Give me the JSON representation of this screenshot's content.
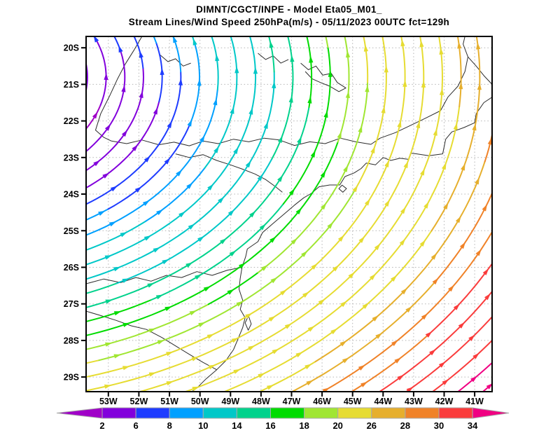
{
  "title": {
    "line1": "DIMNT/CGCT/INPE -   Model Eta05_M01_",
    "line2": "Stream Lines/Wind Speed 250hPa(m/s) -   05/11/2023 00UTC fct=129h"
  },
  "axes": {
    "lat_labels": [
      "20S",
      "21S",
      "22S",
      "23S",
      "24S",
      "25S",
      "26S",
      "27S",
      "28S",
      "29S"
    ],
    "lat_values": [
      -20,
      -21,
      -22,
      -23,
      -24,
      -25,
      -26,
      -27,
      -28,
      -29
    ],
    "lon_labels": [
      "53W",
      "52W",
      "51W",
      "50W",
      "49W",
      "48W",
      "47W",
      "46W",
      "45W",
      "44W",
      "43W",
      "42W",
      "41W"
    ],
    "lon_values": [
      -53,
      -52,
      -51,
      -50,
      -49,
      -48,
      -47,
      -46,
      -45,
      -44,
      -43,
      -42,
      -41
    ]
  },
  "colorbar": {
    "labels": [
      "2",
      "6",
      "8",
      "10",
      "14",
      "16",
      "18",
      "20",
      "26",
      "28",
      "30",
      "34"
    ],
    "arrow_low_color": "#A000C8",
    "arrow_high_color": "#F00082"
  },
  "chart_data": {
    "type": "streamline-map",
    "title": "DIMNT/CGCT/INPE - Model Eta05_M01_",
    "subtitle": "Stream Lines/Wind Speed 250hPa(m/s) - 05/11/2023 00UTC fct=129h",
    "variable": "Stream Lines / Wind Speed",
    "level": "250hPa",
    "units": "m/s",
    "model": "Eta05_M01_",
    "institution": "DIMNT/CGCT/INPE",
    "run": "05/11/2023 00UTC",
    "forecast": "fct=129h",
    "lon_range": [
      -53.73,
      -40.43
    ],
    "lat_range": [
      -29.4,
      -19.69
    ],
    "grid": "on, dotted, 1 degree",
    "legend_position": "bottom horizontal colorbar with low/high arrows",
    "speed_levels": [
      2,
      6,
      8,
      10,
      14,
      16,
      18,
      20,
      26,
      28,
      30,
      34
    ],
    "palette": [
      "#A000C8",
      "#8200DC",
      "#1E3CFF",
      "#00A0FF",
      "#00C8C8",
      "#00D28C",
      "#00DC00",
      "#A0E632",
      "#E6DC32",
      "#E6AF2D",
      "#F08228",
      "#FA3C3C",
      "#F00082"
    ],
    "flow_description": "Anticyclonic (counterclockwise) upper-level circulation centered just west of the domain near 57.8W/20.8S; weak winds (<6 m/s, purple) in the west-center, streamlines fan north in the northwest and east along the south; speed increases southeastward to a jet >34 m/s (pink) in the southeast corner.",
    "flow_field": {
      "stream_center": [
        -57.8,
        -20.8
      ],
      "stream_xscale": 1.7,
      "r_start": 2.42,
      "r_end": 14.25,
      "r_step": 0.36,
      "speed_center": [
        -54.5,
        -21.8
      ],
      "speed_xscale": 1.15,
      "speed_yscale": 0.78,
      "speed_slope": 2.35,
      "speed_intercept": -0.5,
      "speed_min": 0.8,
      "speed_max": 41
    },
    "map": {
      "region": "Southeastern / Southern Brazil coast and state borders",
      "coastline": [
        [
          -40.43,
          -21.35
        ],
        [
          -40.7,
          -21.5
        ],
        [
          -40.95,
          -21.8
        ],
        [
          -41.0,
          -22.05
        ],
        [
          -41.35,
          -22.18
        ],
        [
          -41.75,
          -22.3
        ],
        [
          -41.95,
          -22.5
        ],
        [
          -42.05,
          -22.9
        ],
        [
          -42.5,
          -22.95
        ],
        [
          -42.9,
          -22.9
        ],
        [
          -43.1,
          -22.88
        ],
        [
          -43.17,
          -23.05
        ],
        [
          -43.45,
          -23.02
        ],
        [
          -43.75,
          -23.08
        ],
        [
          -44.0,
          -23.0
        ],
        [
          -44.25,
          -23.2
        ],
        [
          -44.55,
          -23.15
        ],
        [
          -44.72,
          -23.3
        ],
        [
          -44.95,
          -23.42
        ],
        [
          -45.25,
          -23.52
        ],
        [
          -45.42,
          -23.75
        ],
        [
          -45.75,
          -23.75
        ],
        [
          -46.1,
          -23.8
        ],
        [
          -46.35,
          -23.98
        ],
        [
          -46.6,
          -24.1
        ],
        [
          -46.9,
          -24.3
        ],
        [
          -47.25,
          -24.55
        ],
        [
          -47.6,
          -24.8
        ],
        [
          -47.95,
          -25.05
        ],
        [
          -48.1,
          -25.3
        ],
        [
          -48.45,
          -25.5
        ],
        [
          -48.5,
          -25.7
        ],
        [
          -48.62,
          -26.0
        ],
        [
          -48.68,
          -26.3
        ],
        [
          -48.72,
          -26.6
        ],
        [
          -48.6,
          -26.9
        ],
        [
          -48.68,
          -27.15
        ],
        [
          -48.52,
          -27.38
        ],
        [
          -48.6,
          -27.65
        ],
        [
          -48.75,
          -27.95
        ],
        [
          -48.9,
          -28.25
        ],
        [
          -49.15,
          -28.55
        ],
        [
          -49.45,
          -28.8
        ],
        [
          -49.8,
          -29.05
        ],
        [
          -50.1,
          -29.3
        ],
        [
          -50.3,
          -29.42
        ]
      ],
      "islands": [
        [
          [
            -48.4,
            -27.35
          ],
          [
            -48.32,
            -27.55
          ],
          [
            -48.42,
            -27.72
          ],
          [
            -48.52,
            -27.52
          ],
          [
            -48.43,
            -27.36
          ]
        ],
        [
          [
            -45.35,
            -23.75
          ],
          [
            -45.2,
            -23.85
          ],
          [
            -45.32,
            -23.95
          ],
          [
            -45.45,
            -23.85
          ],
          [
            -45.35,
            -23.76
          ]
        ]
      ],
      "borders": [
        [
          [
            -51.9,
            -19.69
          ],
          [
            -52.15,
            -20.05
          ],
          [
            -52.45,
            -20.45
          ],
          [
            -52.7,
            -20.85
          ],
          [
            -52.95,
            -21.3
          ],
          [
            -53.25,
            -21.8
          ],
          [
            -53.42,
            -22.25
          ],
          [
            -53.15,
            -22.45
          ],
          [
            -52.9,
            -22.55
          ]
        ],
        [
          [
            -52.9,
            -22.55
          ],
          [
            -52.4,
            -22.62
          ],
          [
            -51.9,
            -22.52
          ],
          [
            -51.35,
            -22.65
          ],
          [
            -50.85,
            -22.58
          ],
          [
            -50.35,
            -22.68
          ],
          [
            -49.9,
            -22.55
          ],
          [
            -49.4,
            -22.62
          ],
          [
            -48.9,
            -22.5
          ],
          [
            -48.4,
            -22.57
          ],
          [
            -47.9,
            -22.47
          ],
          [
            -47.4,
            -22.52
          ],
          [
            -46.9,
            -22.67
          ],
          [
            -46.4,
            -22.57
          ],
          [
            -45.9,
            -22.62
          ],
          [
            -45.4,
            -22.47
          ],
          [
            -44.9,
            -22.57
          ],
          [
            -44.4,
            -22.64
          ],
          [
            -44.1,
            -22.47
          ],
          [
            -43.6,
            -22.32
          ],
          [
            -43.1,
            -22.12
          ],
          [
            -42.6,
            -21.92
          ],
          [
            -42.12,
            -21.72
          ],
          [
            -41.88,
            -21.35
          ],
          [
            -41.55,
            -21.05
          ],
          [
            -41.32,
            -20.65
          ],
          [
            -41.22,
            -20.25
          ],
          [
            -41.38,
            -19.9
          ],
          [
            -41.32,
            -19.69
          ]
        ],
        [
          [
            -41.22,
            -20.25
          ],
          [
            -40.95,
            -20.5
          ],
          [
            -40.68,
            -20.78
          ],
          [
            -40.43,
            -21.0
          ]
        ],
        [
          [
            -48.62,
            -26.0
          ],
          [
            -49.1,
            -26.08
          ],
          [
            -49.6,
            -26.22
          ],
          [
            -50.1,
            -26.12
          ],
          [
            -50.6,
            -26.28
          ],
          [
            -51.1,
            -26.22
          ],
          [
            -51.6,
            -26.38
          ],
          [
            -52.1,
            -26.28
          ],
          [
            -52.6,
            -26.42
          ],
          [
            -53.15,
            -26.32
          ],
          [
            -53.73,
            -26.45
          ]
        ],
        [
          [
            -49.45,
            -28.8
          ],
          [
            -49.9,
            -28.6
          ],
          [
            -50.35,
            -28.38
          ],
          [
            -50.8,
            -28.15
          ],
          [
            -51.25,
            -27.92
          ],
          [
            -51.75,
            -27.7
          ],
          [
            -52.25,
            -27.6
          ],
          [
            -52.75,
            -27.45
          ],
          [
            -53.25,
            -27.32
          ],
          [
            -53.73,
            -27.2
          ]
        ],
        [
          [
            -50.8,
            -22.9
          ],
          [
            -50.35,
            -23.0
          ],
          [
            -49.9,
            -22.92
          ],
          [
            -49.45,
            -23.08
          ],
          [
            -49.0,
            -23.2
          ],
          [
            -48.6,
            -23.32
          ],
          [
            -48.2,
            -23.45
          ],
          [
            -47.85,
            -23.6
          ],
          [
            -47.55,
            -23.78
          ],
          [
            -47.3,
            -23.95
          ]
        ]
      ],
      "lakes": [
        [
          [
            -46.7,
            -20.42
          ],
          [
            -46.45,
            -20.6
          ],
          [
            -46.2,
            -20.5
          ],
          [
            -45.98,
            -20.75
          ],
          [
            -45.7,
            -20.7
          ],
          [
            -45.5,
            -20.95
          ],
          [
            -45.22,
            -21.1
          ],
          [
            -45.45,
            -21.2
          ],
          [
            -45.75,
            -21.05
          ],
          [
            -46.05,
            -20.95
          ],
          [
            -46.32,
            -20.85
          ],
          [
            -46.55,
            -20.65
          ]
        ],
        [
          [
            -48.1,
            -20.15
          ],
          [
            -47.85,
            -20.32
          ],
          [
            -47.6,
            -20.22
          ],
          [
            -47.35,
            -20.42
          ],
          [
            -47.1,
            -20.32
          ]
        ],
        [
          [
            -51.3,
            -20.2
          ],
          [
            -51.05,
            -20.38
          ],
          [
            -50.8,
            -20.3
          ],
          [
            -50.55,
            -20.5
          ],
          [
            -50.3,
            -20.42
          ]
        ]
      ]
    }
  }
}
